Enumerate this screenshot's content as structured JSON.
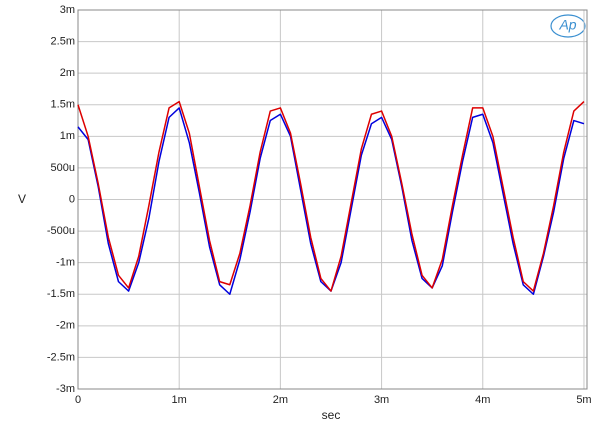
{
  "chart_data": {
    "type": "line",
    "logo": "Ap",
    "xlabel": "sec",
    "ylabel": "V",
    "x": [
      0,
      0.0001,
      0.0002,
      0.0003,
      0.0004,
      0.0005,
      0.0006,
      0.0007,
      0.0008,
      0.0009,
      0.001,
      0.0011,
      0.0012,
      0.0013,
      0.0014,
      0.0015,
      0.0016,
      0.0017,
      0.0018,
      0.0019,
      0.002,
      0.0021,
      0.0022,
      0.0023,
      0.0024,
      0.0025,
      0.0026,
      0.0027,
      0.0028,
      0.0029,
      0.003,
      0.0031,
      0.0032,
      0.0033,
      0.0034,
      0.0035,
      0.0036,
      0.0037,
      0.0038,
      0.0039,
      0.004,
      0.0041,
      0.0042,
      0.0043,
      0.0044,
      0.0045,
      0.0046,
      0.0047,
      0.0048,
      0.0049,
      0.005
    ],
    "series": [
      {
        "color": "#0000dd",
        "values": [
          0.00115,
          0.00095,
          0.0002,
          -0.0007,
          -0.0013,
          -0.00145,
          -0.001,
          -0.0003,
          0.0006,
          0.0013,
          0.00145,
          0.0009,
          0.0001,
          -0.00075,
          -0.00135,
          -0.0015,
          -0.00095,
          -0.0002,
          0.00065,
          0.00125,
          0.00135,
          0.001,
          0.00015,
          -0.0007,
          -0.0013,
          -0.00145,
          -0.001,
          -0.00015,
          0.0007,
          0.0012,
          0.0013,
          0.00095,
          0.0002,
          -0.00065,
          -0.00125,
          -0.0014,
          -0.00105,
          -0.0002,
          0.0006,
          0.0013,
          0.00135,
          0.0009,
          0.0001,
          -0.0007,
          -0.00135,
          -0.0015,
          -0.0009,
          -0.0002,
          0.00065,
          0.00125,
          0.0012
        ]
      },
      {
        "color": "#dd0000",
        "values": [
          0.0015,
          0.001,
          0.00025,
          -0.0006,
          -0.0012,
          -0.0014,
          -0.0009,
          -0.0001,
          0.00075,
          0.00145,
          0.00155,
          0.00105,
          0.0002,
          -0.00065,
          -0.0013,
          -0.00135,
          -0.00085,
          -0.0001,
          0.00075,
          0.0014,
          0.00145,
          0.00105,
          0.00025,
          -0.0006,
          -0.00125,
          -0.00145,
          -0.0009,
          -5e-05,
          0.0008,
          0.00135,
          0.0014,
          0.001,
          0.00025,
          -0.00055,
          -0.0012,
          -0.0014,
          -0.00095,
          -0.0001,
          0.0007,
          0.00145,
          0.00145,
          0.001,
          0.0002,
          -0.0006,
          -0.0013,
          -0.00145,
          -0.00085,
          -0.0001,
          0.00075,
          0.0014,
          0.00155
        ]
      }
    ],
    "xlim": [
      0,
      0.00503
    ],
    "ylim": [
      -0.003,
      0.003
    ],
    "xticks": [
      0,
      {
        "value": 0.001,
        "label": "1m"
      },
      {
        "value": 0.002,
        "label": "2m"
      },
      {
        "value": 0.003,
        "label": "3m"
      },
      {
        "value": 0.004,
        "label": "4m"
      },
      {
        "value": 0.005,
        "label": "5m"
      }
    ],
    "yticks": [
      {
        "value": 0.003,
        "label": "3m"
      },
      {
        "value": 0.0025,
        "label": "2.5m"
      },
      {
        "value": 0.002,
        "label": "2m"
      },
      {
        "value": 0.0015,
        "label": "1.5m"
      },
      {
        "value": 0.001,
        "label": "1m"
      },
      {
        "value": 0.0005,
        "label": "500u"
      },
      0,
      {
        "value": -0.0005,
        "label": "-500u"
      },
      {
        "value": -0.001,
        "label": "-1m"
      },
      {
        "value": -0.0015,
        "label": "-1.5m"
      },
      {
        "value": -0.002,
        "label": "-2m"
      },
      {
        "value": -0.0025,
        "label": "-2.5m"
      },
      {
        "value": -0.003,
        "label": "-3m"
      }
    ],
    "grid": true
  }
}
